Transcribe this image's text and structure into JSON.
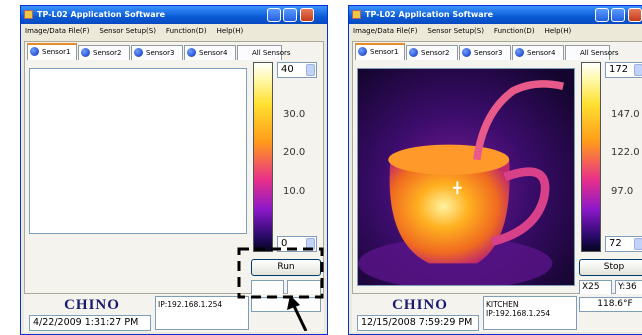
{
  "windows": [
    {
      "title": "TP-L02 Application Software",
      "menu": [
        "Image/Data File(F)",
        "Sensor Setup(S)",
        "Function(D)",
        "Help(H)"
      ],
      "tabs": [
        "Sensor1",
        "Sensor2",
        "Sensor3",
        "Sensor4",
        "All Sensors"
      ],
      "scale": [
        "40",
        "30.0",
        "20.0",
        "10.0",
        "0"
      ],
      "button": "Run",
      "logo": "CHINO",
      "info_lines": [
        "IP:192.168.1.254"
      ],
      "datetime": "4/22/2009 1:31:27 PM"
    },
    {
      "title": "TP-L02 Application Software",
      "menu": [
        "Image/Data File(F)",
        "Sensor Setup(S)",
        "Function(D)",
        "Help(H)"
      ],
      "tabs": [
        "Sensor1",
        "Sensor2",
        "Sensor3",
        "Sensor4",
        "All Sensors"
      ],
      "scale": [
        "172",
        "147.0",
        "122.0",
        "97.0",
        "72"
      ],
      "button": "Stop",
      "coords": [
        "X25",
        "Y:36"
      ],
      "temperature": "118.6°F",
      "logo": "CHINO",
      "info_lines": [
        "KITCHEN",
        "IP:192.168.1.254"
      ],
      "datetime": "12/15/2008 7:59:29 PM"
    }
  ]
}
